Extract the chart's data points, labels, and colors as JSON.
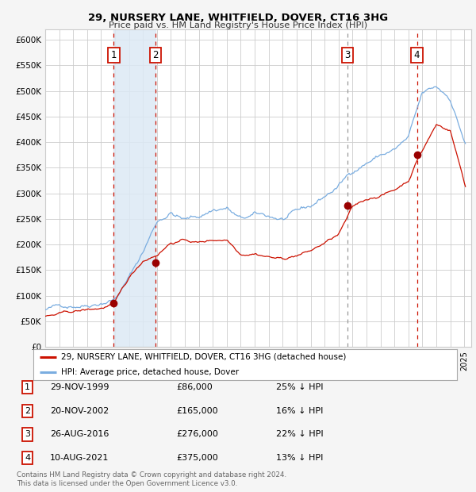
{
  "title1": "29, NURSERY LANE, WHITFIELD, DOVER, CT16 3HG",
  "title2": "Price paid vs. HM Land Registry's House Price Index (HPI)",
  "ylim": [
    0,
    620000
  ],
  "yticks": [
    0,
    50000,
    100000,
    150000,
    200000,
    250000,
    300000,
    350000,
    400000,
    450000,
    500000,
    550000,
    600000
  ],
  "xlim_start": 1995.0,
  "xlim_end": 2025.5,
  "hpi_color": "#7aade0",
  "price_color": "#cc1100",
  "sale_marker_color": "#990000",
  "transactions": [
    {
      "date": 1999.91,
      "price": 86000,
      "label": "1"
    },
    {
      "date": 2002.89,
      "price": 165000,
      "label": "2"
    },
    {
      "date": 2016.65,
      "price": 276000,
      "label": "3"
    },
    {
      "date": 2021.61,
      "price": 375000,
      "label": "4"
    }
  ],
  "vline_colors": [
    "#cc1100",
    "#cc1100",
    "#999999",
    "#cc1100"
  ],
  "shade_x0": 1999.91,
  "shade_x1": 2002.89,
  "legend_line1": "29, NURSERY LANE, WHITFIELD, DOVER, CT16 3HG (detached house)",
  "legend_line2": "HPI: Average price, detached house, Dover",
  "table_rows": [
    {
      "num": "1",
      "date": "29-NOV-1999",
      "price": "£86,000",
      "pct": "25% ↓ HPI"
    },
    {
      "num": "2",
      "date": "20-NOV-2002",
      "price": "£165,000",
      "pct": "16% ↓ HPI"
    },
    {
      "num": "3",
      "date": "26-AUG-2016",
      "price": "£276,000",
      "pct": "22% ↓ HPI"
    },
    {
      "num": "4",
      "date": "10-AUG-2021",
      "price": "£375,000",
      "pct": "13% ↓ HPI"
    }
  ],
  "footnote1": "Contains HM Land Registry data © Crown copyright and database right 2024.",
  "footnote2": "This data is licensed under the Open Government Licence v3.0."
}
